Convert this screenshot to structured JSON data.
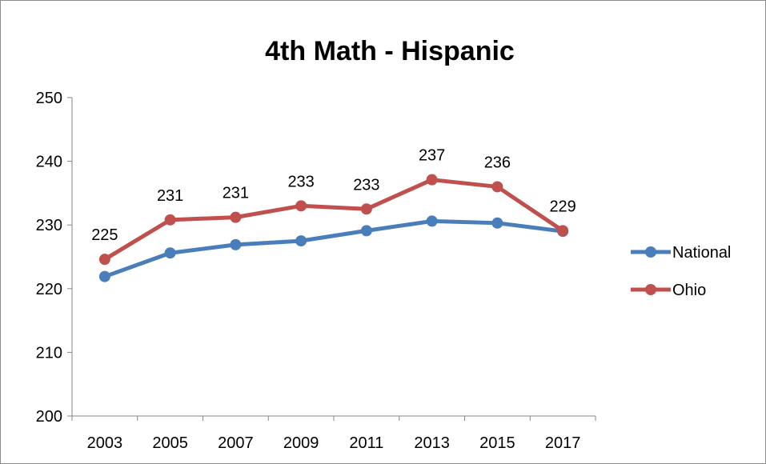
{
  "chart_data": {
    "type": "line",
    "title": "4th Math - Hispanic",
    "xlabel": "",
    "ylabel": "",
    "categories": [
      "2003",
      "2005",
      "2007",
      "2009",
      "2011",
      "2013",
      "2015",
      "2017"
    ],
    "y_ticks": [
      "200",
      "210",
      "220",
      "230",
      "240",
      "250"
    ],
    "ylim": [
      200,
      250
    ],
    "grid": false,
    "legend_position": "right",
    "series": [
      {
        "name": "National",
        "color": "#4a7ebb",
        "values": [
          221.9,
          225.6,
          226.9,
          227.5,
          229.1,
          230.6,
          230.3,
          229.0
        ],
        "data_labels": []
      },
      {
        "name": "Ohio",
        "color": "#c0504d",
        "values": [
          224.6,
          230.8,
          231.2,
          233.0,
          232.5,
          237.1,
          236.0,
          229.1
        ],
        "data_labels": [
          "225",
          "231",
          "231",
          "233",
          "233",
          "237",
          "236",
          "229"
        ]
      }
    ]
  }
}
